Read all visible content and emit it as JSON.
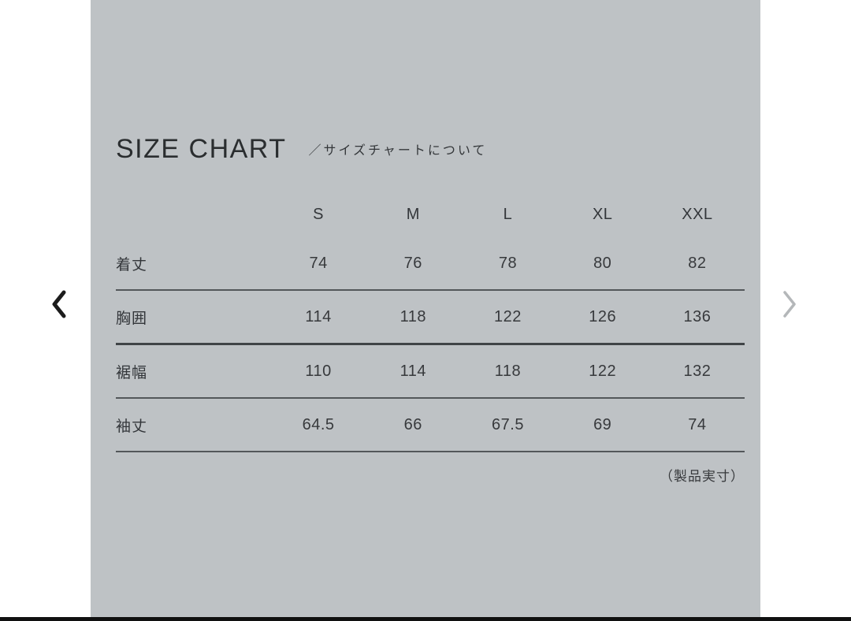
{
  "colors": {
    "page_bg": "#ffffff",
    "panel_bg": "#bec2c5",
    "text_dark": "#2a2d2f",
    "divider": "#53575a",
    "divider_thick": "#404447",
    "prev_chevron": "#1c1c1c",
    "next_chevron": "#b4b7b9",
    "bottom_bar": "#101010"
  },
  "carousel": {
    "prev_icon": "chevron-left",
    "next_icon": "chevron-right"
  },
  "size_chart": {
    "title": "SIZE CHART",
    "subtitle": "／サイズチャートについて",
    "note": "（製品実寸）",
    "chart_data": {
      "type": "table",
      "columns": [
        "S",
        "M",
        "L",
        "XL",
        "XXL"
      ],
      "rows": [
        {
          "label": "着丈",
          "values": [
            "74",
            "76",
            "78",
            "80",
            "82"
          ],
          "divider": "thin"
        },
        {
          "label": "胸囲",
          "values": [
            "114",
            "118",
            "122",
            "126",
            "136"
          ],
          "divider": "thick"
        },
        {
          "label": "裾幅",
          "values": [
            "110",
            "114",
            "118",
            "122",
            "132"
          ],
          "divider": "thin"
        },
        {
          "label": "袖丈",
          "values": [
            "64.5",
            "66",
            "67.5",
            "69",
            "74"
          ],
          "divider": "thin"
        }
      ]
    }
  }
}
